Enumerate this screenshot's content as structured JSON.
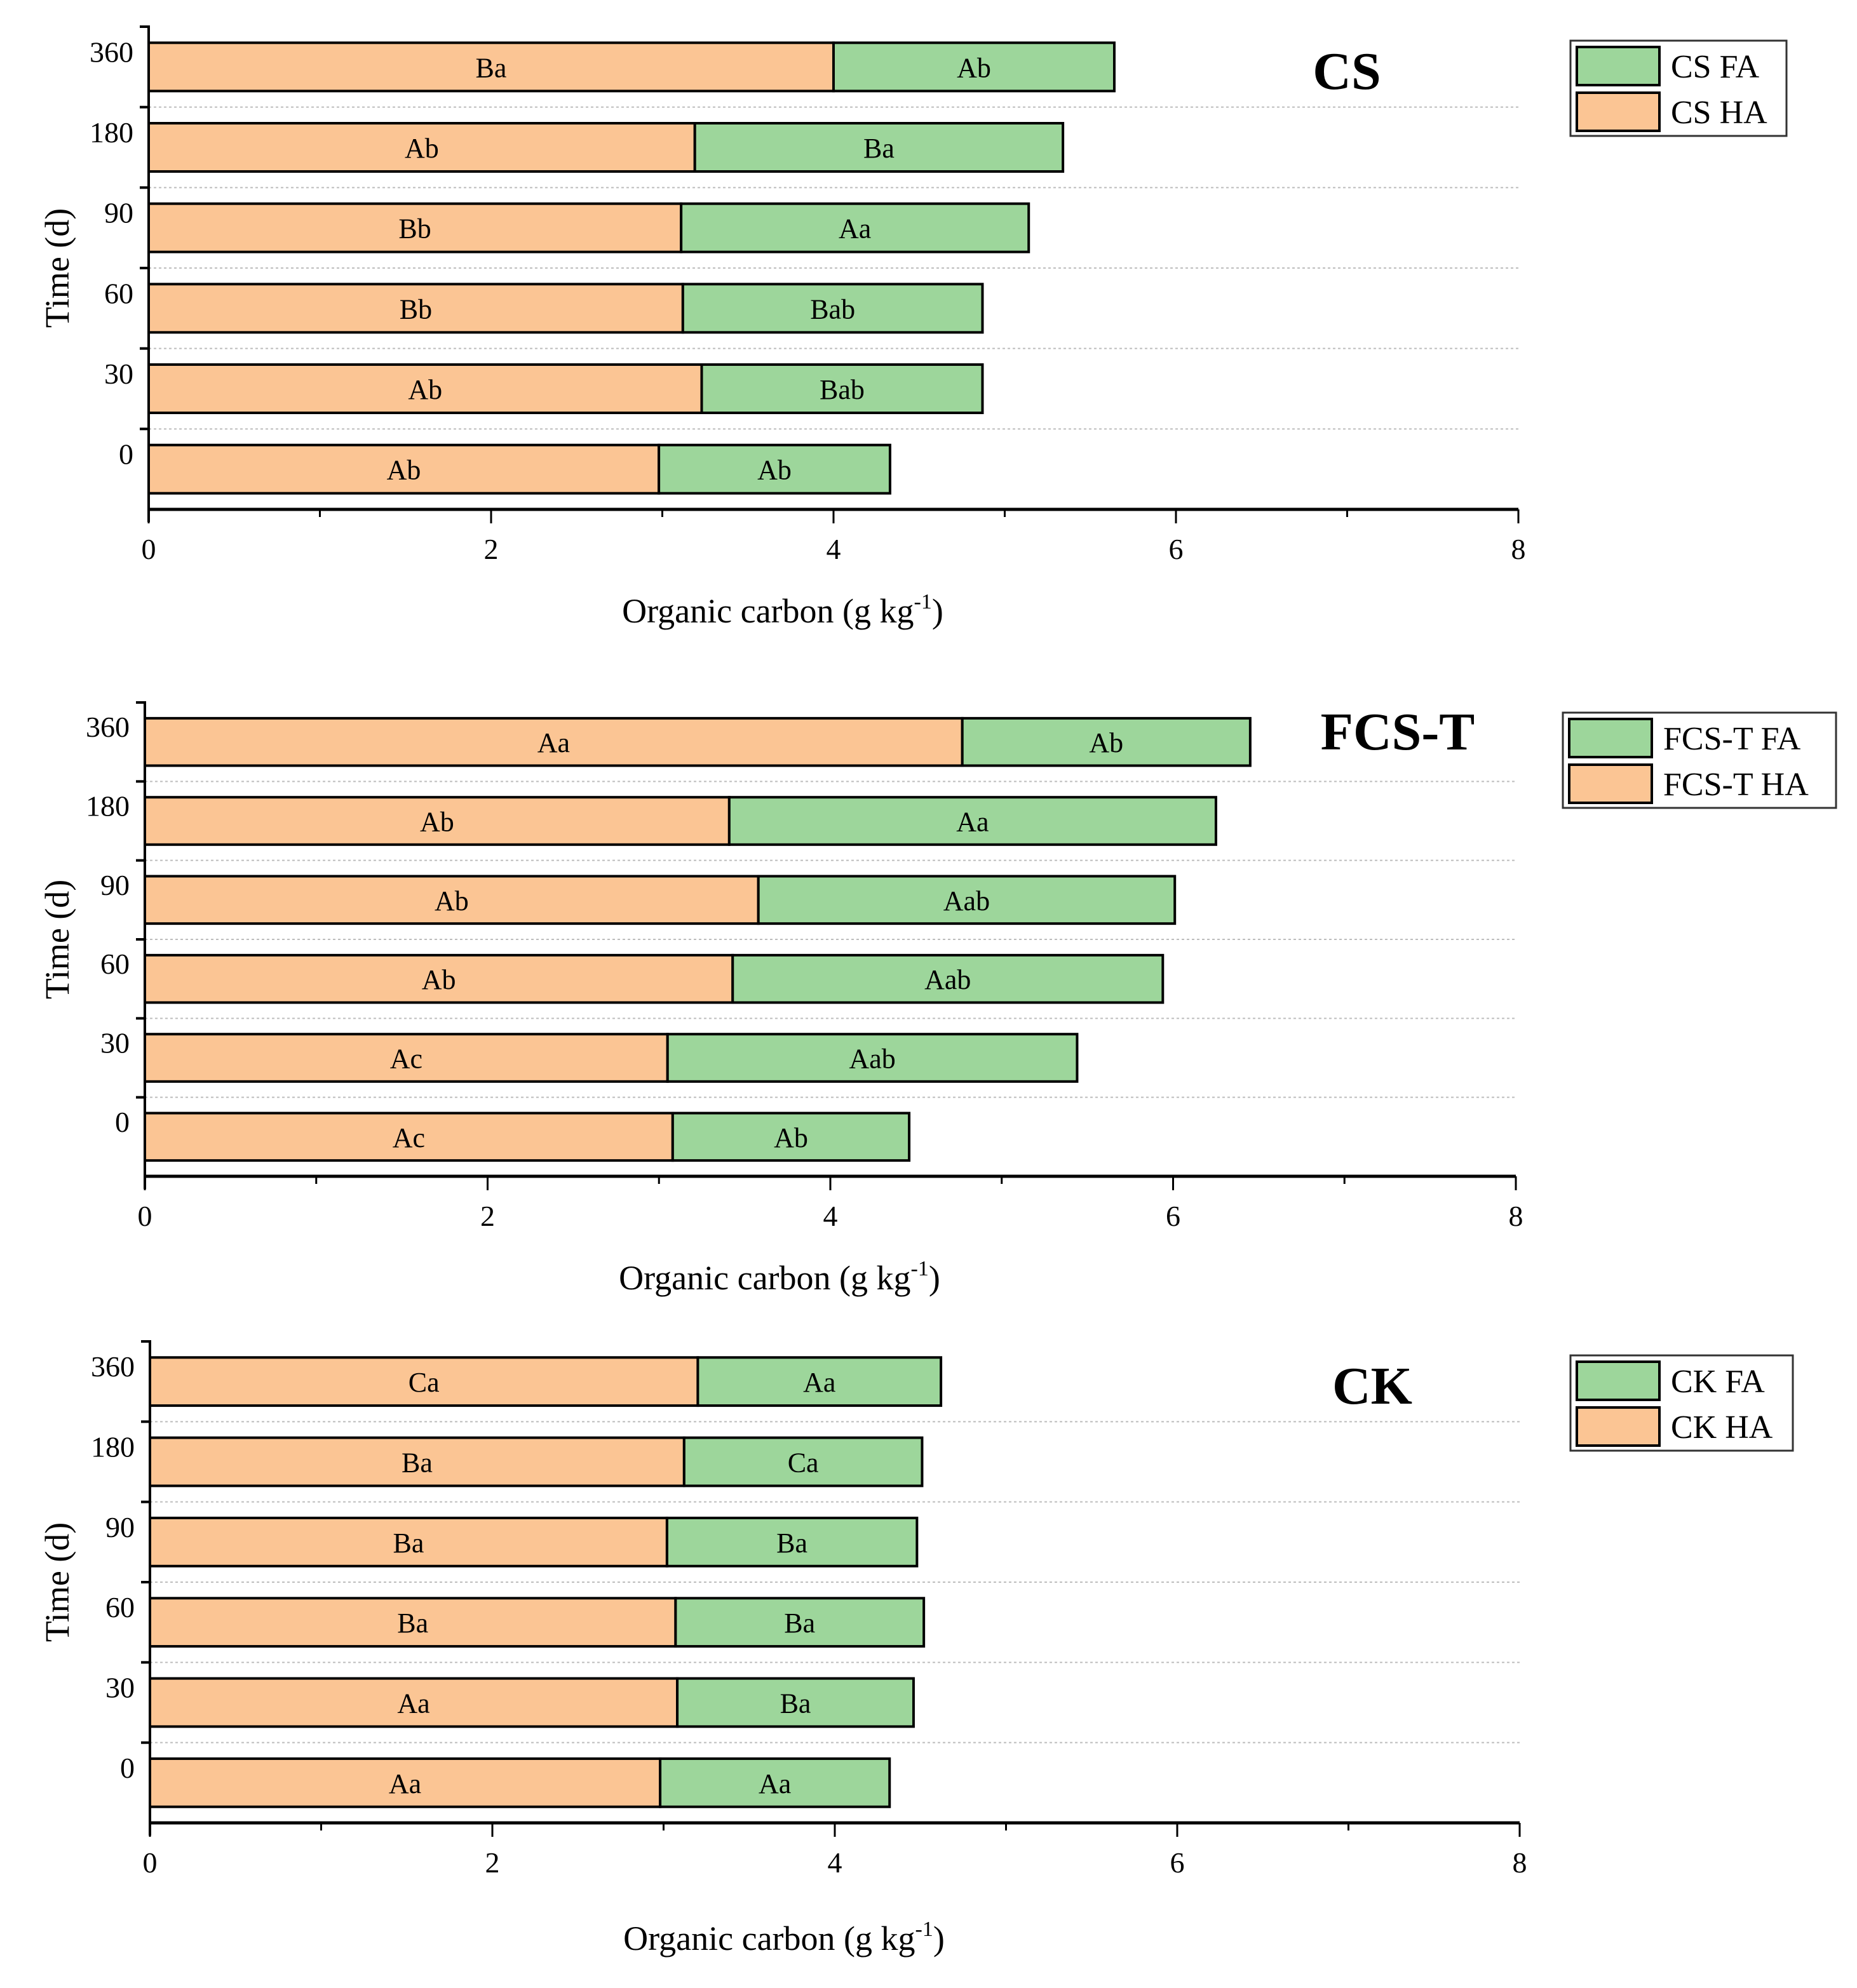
{
  "colors": {
    "fa": "#9dd69b",
    "ha": "#fbc594",
    "edge": "#000000",
    "grid": "#bdbdbd"
  },
  "chart_data": [
    {
      "type": "bar",
      "orientation": "horizontal",
      "stacked": true,
      "title": "CS",
      "xlabel": "Organic carbon (g kg",
      "xlabel_sup": "-1",
      "xlabel_end": ")",
      "ylabel": "Time (d)",
      "xlim": [
        0,
        8
      ],
      "xticks": [
        "0",
        "2",
        "4",
        "6",
        "8"
      ],
      "categories": [
        "0",
        "30",
        "60",
        "90",
        "180",
        "360"
      ],
      "legend_position": "top-right",
      "grid": "horizontal dotted",
      "series": [
        {
          "name": "CS HA",
          "color_key": "ha",
          "values": [
            2.98,
            3.23,
            3.12,
            3.11,
            3.19,
            4.0
          ],
          "labels": [
            "Ab",
            "Ab",
            "Bb",
            "Bb",
            "Ab",
            "Ba"
          ]
        },
        {
          "name": "CS FA",
          "color_key": "fa",
          "values": [
            1.35,
            1.64,
            1.75,
            2.03,
            2.15,
            1.64
          ],
          "labels": [
            "Ab",
            "Bab",
            "Bab",
            "Aa",
            "Ba",
            "Ab"
          ]
        }
      ]
    },
    {
      "type": "bar",
      "orientation": "horizontal",
      "stacked": true,
      "title": "FCS-T",
      "xlabel": "Organic carbon (g kg",
      "xlabel_sup": "-1",
      "xlabel_end": ")",
      "ylabel": "Time (d)",
      "xlim": [
        0,
        8
      ],
      "xticks": [
        "0",
        "2",
        "4",
        "6",
        "8"
      ],
      "categories": [
        "0",
        "30",
        "60",
        "90",
        "180",
        "360"
      ],
      "legend_position": "top-right",
      "grid": "horizontal dotted",
      "series": [
        {
          "name": "FCS-T HA",
          "color_key": "ha",
          "values": [
            3.08,
            3.05,
            3.43,
            3.58,
            3.41,
            4.77
          ],
          "labels": [
            "Ac",
            "Ac",
            "Ab",
            "Ab",
            "Ab",
            "Aa"
          ]
        },
        {
          "name": "FCS-T FA",
          "color_key": "fa",
          "values": [
            1.38,
            2.39,
            2.51,
            2.43,
            2.84,
            1.68
          ],
          "labels": [
            "Ab",
            "Aab",
            "Aab",
            "Aab",
            "Aa",
            "Ab"
          ]
        }
      ]
    },
    {
      "type": "bar",
      "orientation": "horizontal",
      "stacked": true,
      "title": "CK",
      "xlabel": "Organic carbon (g kg",
      "xlabel_sup": "-1",
      "xlabel_end": ")",
      "ylabel": "Time (d)",
      "xlim": [
        0,
        8
      ],
      "xticks": [
        "0",
        "2",
        "4",
        "6",
        "8"
      ],
      "categories": [
        "0",
        "30",
        "60",
        "90",
        "180",
        "360"
      ],
      "legend_position": "top-right",
      "grid": "horizontal dotted",
      "series": [
        {
          "name": "CK HA",
          "color_key": "ha",
          "values": [
            2.98,
            3.08,
            3.07,
            3.02,
            3.12,
            3.2
          ],
          "labels": [
            "Aa",
            "Aa",
            "Ba",
            "Ba",
            "Ba",
            "Ca"
          ]
        },
        {
          "name": "CK FA",
          "color_key": "fa",
          "values": [
            1.34,
            1.38,
            1.45,
            1.46,
            1.39,
            1.42
          ],
          "labels": [
            "Aa",
            "Ba",
            "Ba",
            "Ba",
            "Ca",
            "Aa"
          ]
        }
      ]
    }
  ]
}
